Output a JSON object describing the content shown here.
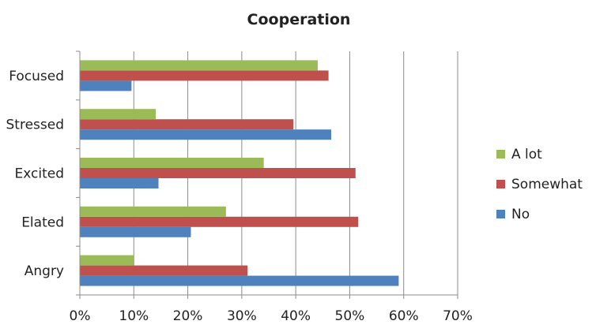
{
  "chart_data": {
    "type": "bar",
    "orientation": "horizontal",
    "title": "Cooperation",
    "xlabel": "",
    "ylabel": "",
    "categories": [
      "Angry",
      "Elated",
      "Excited",
      "Stressed",
      "Focused"
    ],
    "series": [
      {
        "name": "No",
        "color": "#4F81BD",
        "values": [
          0.59,
          0.205,
          0.145,
          0.465,
          0.095
        ]
      },
      {
        "name": "Somewhat",
        "color": "#C0504D",
        "values": [
          0.31,
          0.515,
          0.51,
          0.395,
          0.46
        ]
      },
      {
        "name": "A lot",
        "color": "#9BBB59",
        "values": [
          0.1,
          0.27,
          0.34,
          0.14,
          0.44
        ]
      }
    ],
    "xlim": [
      0,
      0.7
    ],
    "xticks": [
      0,
      0.1,
      0.2,
      0.3,
      0.4,
      0.5,
      0.6,
      0.7
    ],
    "xtick_labels": [
      "0%",
      "10%",
      "20%",
      "30%",
      "40%",
      "50%",
      "60%",
      "70%"
    ],
    "grid": "vertical",
    "legend_position": "right",
    "legend_order": [
      "A lot",
      "Somewhat",
      "No"
    ]
  }
}
